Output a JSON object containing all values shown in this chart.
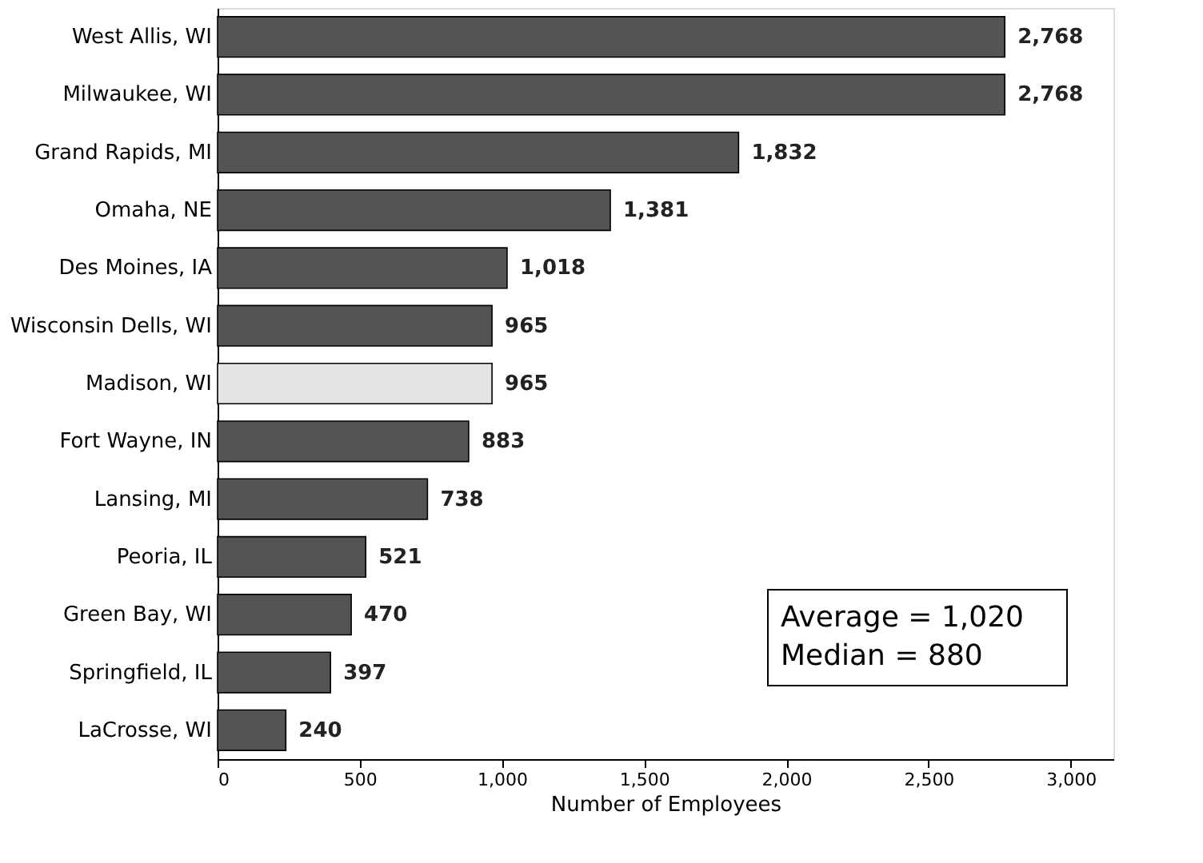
{
  "chart_data": {
    "type": "bar",
    "orientation": "horizontal",
    "xlabel": "Number of Employees",
    "categories": [
      "West Allis, WI",
      "Milwaukee, WI",
      "Grand Rapids, MI",
      "Omaha, NE",
      "Des Moines, IA",
      "Wisconsin Dells, WI",
      "Madison, WI",
      "Fort Wayne, IN",
      "Lansing, MI",
      "Peoria, IL",
      "Green Bay, WI",
      "Springfield, IL",
      "LaCrosse, WI"
    ],
    "values": [
      2768,
      2768,
      1832,
      1381,
      1018,
      965,
      965,
      883,
      738,
      521,
      470,
      397,
      240
    ],
    "colors": [
      "#545454",
      "#545454",
      "#545454",
      "#545454",
      "#545454",
      "#545454",
      "#e4e4e4",
      "#545454",
      "#545454",
      "#545454",
      "#545454",
      "#545454",
      "#545454"
    ],
    "value_labels": [
      "2,768",
      "2,768",
      "1,832",
      "1,381",
      "1,018",
      "965",
      "965",
      "883",
      "738",
      "521",
      "470",
      "397",
      "240"
    ],
    "xlim": [
      0,
      3150
    ],
    "xticks": [
      {
        "value": 0,
        "label": "0"
      },
      {
        "value": 500,
        "label": "500"
      },
      {
        "value": 1000,
        "label": "1,000"
      },
      {
        "value": 1500,
        "label": "1,500"
      },
      {
        "value": 2000,
        "label": "2,000"
      },
      {
        "value": 2500,
        "label": "2,500"
      },
      {
        "value": 3000,
        "label": "3,000"
      }
    ],
    "grid": false,
    "legend": false,
    "annotations": [
      "Average = 1,020",
      "Median = 880"
    ]
  }
}
